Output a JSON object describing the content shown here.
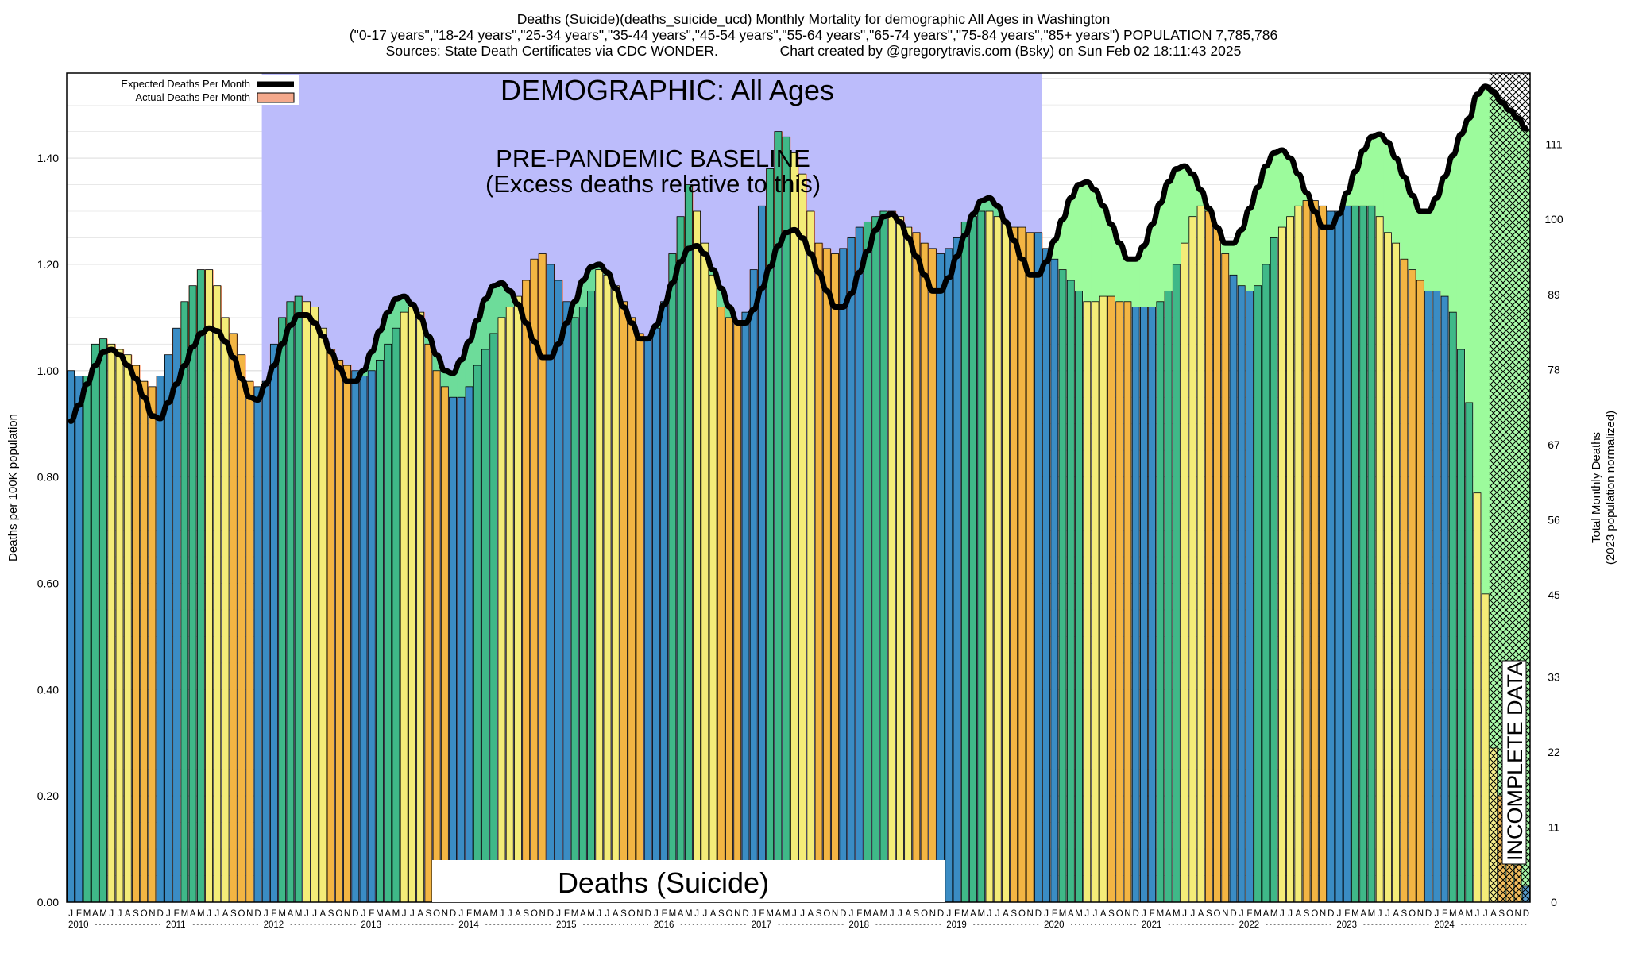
{
  "header": {
    "line1": "Deaths (Suicide)(deaths_suicide_ucd) Monthly Mortality for demographic All Ages in Washington",
    "line2": "(\"0-17 years\",\"18-24 years\",\"25-34 years\",\"35-44 years\",\"45-54 years\",\"55-64 years\",\"65-74 years\",\"75-84 years\",\"85+ years\") POPULATION 7,785,786",
    "line3": "Sources: State Death Certificates via CDC WONDER.                Chart created by @gregorytravis.com (Bsky) on Sun Feb 02 18:11:43 2025"
  },
  "annotations": {
    "demographic": "DEMOGRAPHIC: All Ages",
    "baseline_1": "PRE-PANDEMIC BASELINE",
    "baseline_2": "(Excess deaths relative to this)",
    "cause": "Deaths (Suicide)",
    "incomplete": "INCOMPLETE DATA"
  },
  "legend": {
    "expected": "Expected Deaths Per Month",
    "actual": "Actual Deaths Per Month"
  },
  "colors": {
    "baseline_shade": "#bcbcfb",
    "excess_above": "#ff6b2b",
    "deficit_fill": "#6ddc9a",
    "post_fill": "#9cfb9c",
    "expected_line": "#000000",
    "bar_winter": "#3a8cc4",
    "bar_spring": "#3fb888",
    "bar_summer": "#f4ec78",
    "bar_autumn": "#f3b543"
  },
  "chart_data": {
    "type": "bar",
    "title": "Deaths (Suicide)(deaths_suicide_ucd) Monthly Mortality for demographic All Ages in Washington",
    "ylabel": "Deaths per 100K population",
    "y2label": "Total Monthly Deaths",
    "y2label_sub": "(2023 population normalized)",
    "ylim": [
      0,
      1.56
    ],
    "y_ticks": [
      "0.00",
      "0.20",
      "0.40",
      "0.60",
      "0.80",
      "1.00",
      "1.20",
      "1.40"
    ],
    "y2_ticks": [
      "0",
      "11",
      "22",
      "33",
      "45",
      "56",
      "67",
      "78",
      "89",
      "100",
      "111"
    ],
    "month_letters": [
      "J",
      "F",
      "M",
      "A",
      "M",
      "J",
      "J",
      "A",
      "S",
      "O",
      "N",
      "D"
    ],
    "years": [
      "2010",
      "2011",
      "2012",
      "2013",
      "2014",
      "2015",
      "2016",
      "2017",
      "2018",
      "2019",
      "2020",
      "2021",
      "2022",
      "2023",
      "2024"
    ],
    "baseline_period": [
      "2012-01",
      "2019-12"
    ],
    "incomplete_from": "2024-08",
    "grid": true,
    "legend_position": "top-left",
    "series": [
      {
        "name": "Actual Deaths Per Month",
        "values": [
          1.0,
          0.99,
          0.99,
          1.05,
          1.06,
          1.05,
          1.04,
          1.03,
          1.01,
          0.98,
          0.97,
          0.99,
          1.03,
          1.08,
          1.13,
          1.16,
          1.19,
          1.19,
          1.16,
          1.1,
          1.07,
          1.03,
          0.98,
          0.97,
          0.98,
          1.05,
          1.1,
          1.13,
          1.14,
          1.13,
          1.12,
          1.08,
          1.04,
          1.02,
          1.01,
          1.0,
          0.99,
          1.0,
          1.02,
          1.05,
          1.08,
          1.11,
          1.12,
          1.11,
          1.05,
          1.0,
          0.97,
          0.95,
          0.95,
          0.97,
          1.01,
          1.04,
          1.07,
          1.1,
          1.12,
          1.14,
          1.17,
          1.21,
          1.22,
          1.2,
          1.17,
          1.13,
          1.1,
          1.12,
          1.15,
          1.19,
          1.18,
          1.16,
          1.13,
          1.1,
          1.07,
          1.06,
          1.08,
          1.13,
          1.22,
          1.29,
          1.35,
          1.3,
          1.24,
          1.18,
          1.12,
          1.1,
          1.09,
          1.11,
          1.19,
          1.31,
          1.38,
          1.45,
          1.44,
          1.41,
          1.37,
          1.3,
          1.24,
          1.23,
          1.22,
          1.23,
          1.25,
          1.27,
          1.28,
          1.29,
          1.3,
          1.3,
          1.29,
          1.27,
          1.26,
          1.24,
          1.23,
          1.22,
          1.23,
          1.25,
          1.28,
          1.29,
          1.3,
          1.3,
          1.29,
          1.28,
          1.27,
          1.27,
          1.26,
          1.26,
          1.23,
          1.21,
          1.19,
          1.17,
          1.15,
          1.13,
          1.13,
          1.14,
          1.14,
          1.13,
          1.13,
          1.12,
          1.12,
          1.12,
          1.13,
          1.15,
          1.2,
          1.24,
          1.29,
          1.31,
          1.3,
          1.27,
          1.22,
          1.18,
          1.16,
          1.15,
          1.16,
          1.2,
          1.25,
          1.27,
          1.29,
          1.31,
          1.32,
          1.32,
          1.31,
          1.3,
          1.3,
          1.31,
          1.31,
          1.31,
          1.31,
          1.29,
          1.26,
          1.24,
          1.21,
          1.19,
          1.17,
          1.15,
          1.15,
          1.14,
          1.11,
          1.04,
          0.94,
          0.77,
          0.58,
          0.29,
          0.2,
          0.12,
          0.07,
          0.03
        ]
      },
      {
        "name": "Expected Deaths Per Month",
        "values": [
          0.905,
          0.935,
          0.975,
          1.01,
          1.035,
          1.04,
          1.03,
          1.01,
          0.985,
          0.95,
          0.915,
          0.91,
          0.94,
          0.975,
          1.01,
          1.045,
          1.07,
          1.08,
          1.075,
          1.055,
          1.025,
          0.985,
          0.95,
          0.945,
          0.975,
          1.01,
          1.05,
          1.085,
          1.105,
          1.105,
          1.09,
          1.065,
          1.035,
          1.005,
          0.98,
          0.98,
          1.0,
          1.035,
          1.075,
          1.11,
          1.135,
          1.14,
          1.125,
          1.1,
          1.065,
          1.03,
          1.0,
          0.995,
          1.02,
          1.055,
          1.095,
          1.135,
          1.16,
          1.165,
          1.15,
          1.125,
          1.09,
          1.055,
          1.025,
          1.025,
          1.05,
          1.09,
          1.13,
          1.17,
          1.195,
          1.2,
          1.185,
          1.155,
          1.12,
          1.09,
          1.06,
          1.06,
          1.085,
          1.125,
          1.165,
          1.205,
          1.23,
          1.235,
          1.22,
          1.19,
          1.155,
          1.12,
          1.09,
          1.09,
          1.115,
          1.155,
          1.195,
          1.235,
          1.26,
          1.265,
          1.25,
          1.22,
          1.185,
          1.15,
          1.12,
          1.12,
          1.145,
          1.185,
          1.225,
          1.265,
          1.29,
          1.295,
          1.28,
          1.25,
          1.215,
          1.18,
          1.15,
          1.15,
          1.175,
          1.215,
          1.255,
          1.295,
          1.32,
          1.325,
          1.31,
          1.28,
          1.245,
          1.21,
          1.18,
          1.18,
          1.205,
          1.245,
          1.285,
          1.325,
          1.35,
          1.355,
          1.34,
          1.31,
          1.275,
          1.24,
          1.21,
          1.21,
          1.235,
          1.275,
          1.315,
          1.355,
          1.38,
          1.385,
          1.37,
          1.34,
          1.305,
          1.27,
          1.24,
          1.24,
          1.265,
          1.305,
          1.345,
          1.385,
          1.41,
          1.415,
          1.4,
          1.37,
          1.335,
          1.3,
          1.27,
          1.27,
          1.295,
          1.335,
          1.375,
          1.415,
          1.44,
          1.445,
          1.43,
          1.4,
          1.365,
          1.33,
          1.3,
          1.3,
          1.325,
          1.365,
          1.405,
          1.445,
          1.475,
          1.52,
          1.535,
          1.525,
          1.505,
          1.49,
          1.475,
          1.455
        ]
      }
    ]
  }
}
